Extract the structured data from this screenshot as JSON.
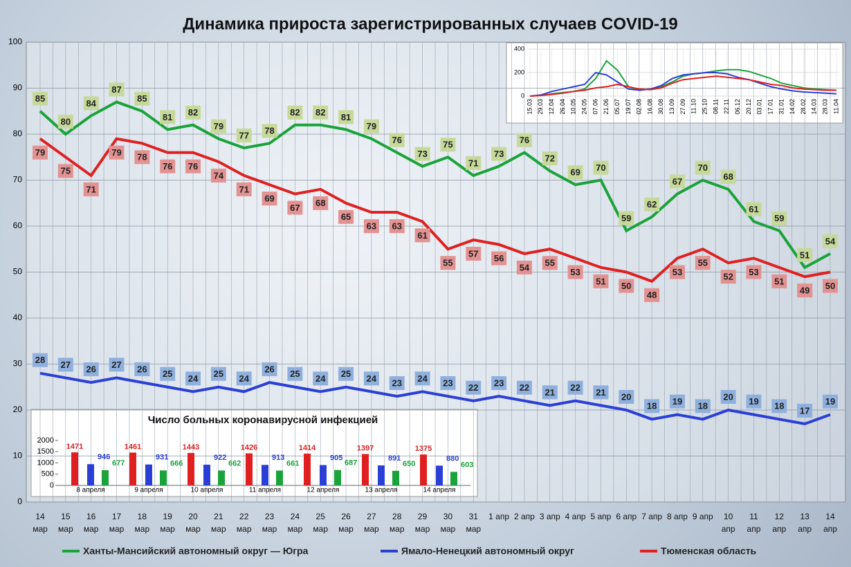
{
  "chart_data": [
    {
      "type": "line",
      "title": "Динамика прироста зарегистрированных случаев COVID-19",
      "categories": [
        "14\nмар",
        "15\nмар",
        "16\nмар",
        "17\nмар",
        "18\nмар",
        "19\nмар",
        "20\nмар",
        "21\nмар",
        "22\nмар",
        "23\nмар",
        "24\nмар",
        "25\nмар",
        "26\nмар",
        "27\nмар",
        "28\nмар",
        "29\nмар",
        "30\nмар",
        "31\nмар",
        "1 апр",
        "2 апр",
        "3 апр",
        "4 апр",
        "5 апр",
        "6 апр",
        "7 апр",
        "8 апр",
        "9 апр",
        "10\nапр",
        "11\nапр",
        "12\nапр",
        "13\nапр",
        "14\nапр"
      ],
      "series": [
        {
          "name": "Ханты-Мансийский автономный округ — Югра",
          "color": "#1aa33a",
          "label_bg": "#c6d99a",
          "values": [
            85,
            80,
            84,
            87,
            85,
            81,
            82,
            79,
            77,
            78,
            82,
            82,
            81,
            79,
            76,
            73,
            75,
            71,
            73,
            76,
            72,
            69,
            70,
            59,
            62,
            67,
            70,
            68,
            61,
            59,
            51,
            54
          ]
        },
        {
          "name": "Ямало-Ненецкий автономный округ",
          "color": "#2a3fd6",
          "label_bg": "#8fb0dd",
          "values": [
            28,
            27,
            26,
            27,
            26,
            25,
            24,
            25,
            24,
            26,
            25,
            24,
            25,
            24,
            23,
            24,
            23,
            22,
            23,
            22,
            21,
            22,
            21,
            20,
            18,
            19,
            18,
            20,
            19,
            18,
            17,
            19
          ]
        },
        {
          "name": "Тюменская область",
          "color": "#e02020",
          "label_bg": "#e39292",
          "values": [
            79,
            75,
            71,
            79,
            78,
            76,
            76,
            74,
            71,
            69,
            67,
            68,
            65,
            63,
            63,
            61,
            55,
            57,
            56,
            54,
            55,
            53,
            51,
            50,
            48,
            53,
            55,
            52,
            53,
            51,
            49,
            50
          ]
        }
      ],
      "ylim": [
        0,
        100
      ],
      "yticks": [
        0,
        10,
        20,
        30,
        40,
        50,
        60,
        70,
        80,
        90,
        100
      ],
      "grid": true
    },
    {
      "type": "bar",
      "title": "Число больных коронавирусной инфекцией",
      "categories": [
        "8 апреля",
        "9 апреля",
        "10 апреля",
        "11 апреля",
        "12 апреля",
        "13 апреля",
        "14 апреля"
      ],
      "series": [
        {
          "color": "#e02020",
          "values": [
            1471,
            1461,
            1443,
            1426,
            1414,
            1397,
            1375
          ]
        },
        {
          "color": "#2a3fd6",
          "values": [
            946,
            931,
            922,
            913,
            905,
            891,
            880
          ]
        },
        {
          "color": "#1aa33a",
          "values": [
            677,
            666,
            662,
            661,
            687,
            650,
            603
          ]
        }
      ],
      "ylim": [
        0,
        2000
      ],
      "yticks": [
        0,
        500,
        1000,
        1500,
        2000
      ]
    },
    {
      "type": "line",
      "categories": [
        "15.03",
        "29.03",
        "12.04",
        "26.04",
        "10.05",
        "24.05",
        "07.06",
        "21.06",
        "05.07",
        "19.07",
        "02.08",
        "16.08",
        "30.08",
        "13.09",
        "27.09",
        "11.10",
        "25.10",
        "08.11",
        "22.11",
        "06.12",
        "20.12",
        "03.01",
        "17.01",
        "31.01",
        "14.02",
        "28.02",
        "14.03",
        "28.03",
        "11.04"
      ],
      "series": [
        {
          "color": "#1aa33a",
          "values": [
            0,
            5,
            20,
            30,
            40,
            60,
            150,
            300,
            220,
            80,
            50,
            60,
            80,
            120,
            170,
            190,
            200,
            215,
            225,
            225,
            210,
            180,
            150,
            110,
            90,
            70,
            60,
            55,
            50
          ]
        },
        {
          "color": "#2a3fd6",
          "values": [
            0,
            10,
            40,
            60,
            80,
            100,
            200,
            180,
            120,
            60,
            50,
            60,
            90,
            150,
            180,
            190,
            200,
            200,
            190,
            160,
            140,
            110,
            80,
            60,
            45,
            35,
            30,
            25,
            20
          ]
        },
        {
          "color": "#e02020",
          "values": [
            0,
            5,
            15,
            25,
            40,
            50,
            70,
            80,
            100,
            80,
            60,
            55,
            70,
            110,
            140,
            150,
            160,
            170,
            160,
            150,
            140,
            120,
            100,
            90,
            70,
            60,
            55,
            50,
            50
          ]
        }
      ],
      "ylim": [
        0,
        400
      ],
      "yticks": [
        0,
        200,
        400
      ],
      "grid": true
    }
  ]
}
